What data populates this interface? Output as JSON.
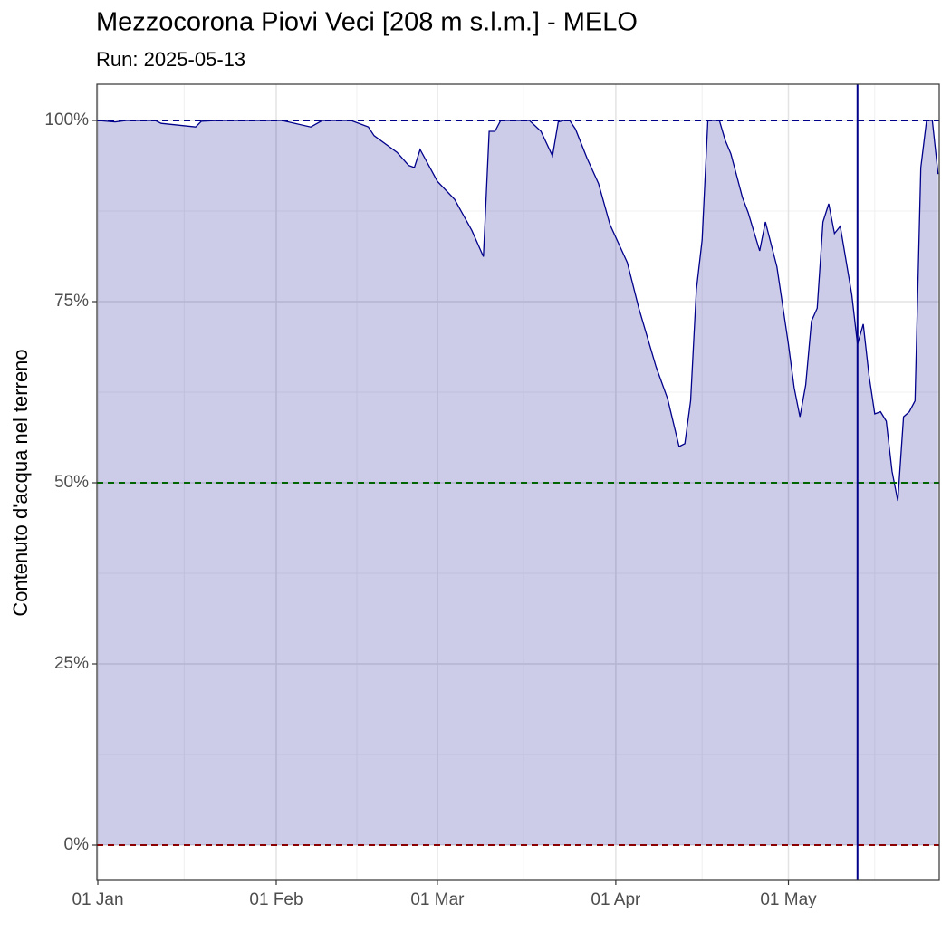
{
  "chart_data": {
    "type": "area",
    "title": "Mezzocorona Piovi Veci [208 m s.l.m.] - MELO",
    "subtitle": "Run: 2025-05-13",
    "y_label": "Contenuto d'acqua nel terreno",
    "color": "#00008b",
    "x": [
      "01-01",
      "01-04",
      "01-06",
      "01-11",
      "01-12",
      "01-18",
      "01-19",
      "01-22",
      "02-02",
      "02-07",
      "02-09",
      "02-14",
      "02-17",
      "02-18",
      "02-22",
      "02-24",
      "02-25",
      "02-26",
      "03-01",
      "03-04",
      "03-07",
      "03-09",
      "03-10",
      "03-11",
      "03-12",
      "03-17",
      "03-19",
      "03-21",
      "03-22",
      "03-23",
      "03-24",
      "03-25",
      "03-27",
      "03-29",
      "03-31",
      "04-03",
      "04-05",
      "04-08",
      "04-10",
      "04-12",
      "04-13",
      "04-14",
      "04-15",
      "04-16",
      "04-17",
      "04-19",
      "04-20",
      "04-21",
      "04-23",
      "04-24",
      "04-26",
      "04-27",
      "04-29",
      "05-01",
      "05-02",
      "05-03",
      "05-04",
      "05-05",
      "05-06",
      "05-07",
      "05-08",
      "05-09",
      "05-10",
      "05-12",
      "05-13",
      "05-14",
      "05-15",
      "05-16",
      "05-17",
      "05-18",
      "05-19",
      "05-20",
      "05-21",
      "05-22",
      "05-23",
      "05-24",
      "05-25",
      "05-26",
      "05-27"
    ],
    "values": [
      100,
      99.8,
      100,
      100,
      99.6,
      99.1,
      99.9,
      100,
      100,
      99.1,
      100,
      100,
      99.1,
      97.9,
      95.6,
      93.8,
      93.5,
      96,
      91.6,
      89.1,
      84.8,
      81.2,
      98.5,
      98.5,
      100,
      100,
      98.5,
      95.1,
      99.8,
      100,
      100,
      98.8,
      94.8,
      91.3,
      85.6,
      80.4,
      74.1,
      66,
      61.6,
      55,
      55.4,
      61.3,
      76.6,
      83.5,
      100,
      100,
      97.3,
      95.4,
      89.4,
      87.3,
      82,
      86,
      79.8,
      69.1,
      63.1,
      59.1,
      63.5,
      72.3,
      74.1,
      86,
      88.5,
      84.4,
      85.4,
      76,
      69.1,
      71.9,
      64.8,
      59.5,
      59.8,
      58.5,
      51.6,
      47.5,
      59.1,
      59.8,
      61.3,
      93.5,
      100,
      100,
      92.6
    ],
    "xlim": [
      "01-01",
      "05-27"
    ],
    "ylim": [
      -4.875,
      105
    ],
    "yticks": [
      {
        "value": 0,
        "label": "0%"
      },
      {
        "value": 25,
        "label": "25%"
      },
      {
        "value": 50,
        "label": "50%"
      },
      {
        "value": 75,
        "label": "75%"
      },
      {
        "value": 100,
        "label": "100%"
      }
    ],
    "xticks": [
      {
        "value": "01-01",
        "label": "01 Jan"
      },
      {
        "value": "02-01",
        "label": "01 Feb"
      },
      {
        "value": "03-01",
        "label": "01 Mar"
      },
      {
        "value": "04-01",
        "label": "01 Apr"
      },
      {
        "value": "05-01",
        "label": "01 May"
      }
    ],
    "yminor": [
      12.5,
      37.5,
      62.5,
      87.5
    ],
    "xminor": [
      "01-16",
      "02-15",
      "03-16",
      "04-16",
      "05-16"
    ],
    "hlines": [
      {
        "value": 100,
        "color": "#00008b"
      },
      {
        "value": 50,
        "color": "#006400"
      },
      {
        "value": 0,
        "color": "#8b0000"
      }
    ],
    "vline": {
      "value": "05-13",
      "color": "#00008b"
    },
    "grid": true
  }
}
